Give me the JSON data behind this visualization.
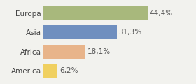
{
  "categories": [
    "Europa",
    "Asia",
    "Africa",
    "America"
  ],
  "values": [
    44.4,
    31.3,
    18.1,
    6.2
  ],
  "labels": [
    "44,4%",
    "31,3%",
    "18,1%",
    "6,2%"
  ],
  "bar_colors": [
    "#a8b87c",
    "#6f8fbf",
    "#e8b48a",
    "#f0d060"
  ],
  "background_color": "#f2f2ee",
  "xlim": [
    0,
    55
  ],
  "label_fontsize": 7.5,
  "category_fontsize": 7.5
}
